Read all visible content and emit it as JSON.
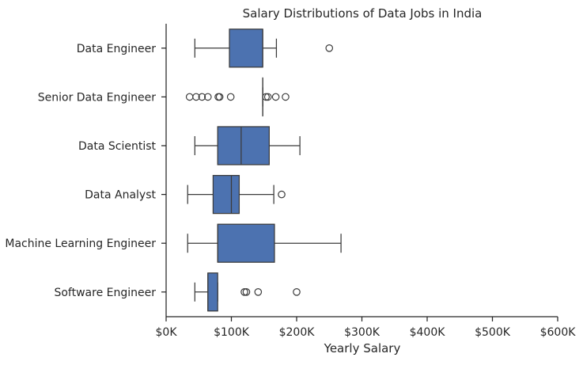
{
  "chart_data": {
    "type": "box",
    "orientation": "horizontal",
    "title": "Salary Distributions of Data Jobs in India",
    "xlabel": "Yearly Salary",
    "ylabel": "",
    "xlim": [
      0,
      600000
    ],
    "x_ticks": [
      0,
      100000,
      200000,
      300000,
      400000,
      500000,
      600000
    ],
    "x_tick_labels": [
      "$0K",
      "$100K",
      "$200K",
      "$300K",
      "$400K",
      "$500K",
      "$600K"
    ],
    "grid": false,
    "legend": "none",
    "box_color": "#4c72b0",
    "line_color": "#3b3b3b",
    "categories": [
      "Data Engineer",
      "Senior Data Engineer",
      "Data Scientist",
      "Data Analyst",
      "Machine Learning Engineer",
      "Software Engineer"
    ],
    "boxes": [
      {
        "label": "Data Engineer",
        "whisker_low": 44000,
        "q1": 97000,
        "median": 148000,
        "q3": 148000,
        "whisker_high": 169000,
        "outliers": [
          250000
        ]
      },
      {
        "label": "Senior Data Engineer",
        "whisker_low": 148000,
        "q1": 148000,
        "median": 148000,
        "q3": 148000,
        "whisker_high": 148000,
        "outliers": [
          36000,
          46000,
          55000,
          64000,
          80000,
          82000,
          99000,
          153000,
          156000,
          168000,
          183000
        ]
      },
      {
        "label": "Data Scientist",
        "whisker_low": 44000,
        "q1": 79000,
        "median": 115000,
        "q3": 158000,
        "whisker_high": 205000,
        "outliers": []
      },
      {
        "label": "Data Analyst",
        "whisker_low": 33000,
        "q1": 72000,
        "median": 100000,
        "q3": 112000,
        "whisker_high": 165000,
        "outliers": [
          177000
        ]
      },
      {
        "label": "Machine Learning Engineer",
        "whisker_low": 33000,
        "q1": 79000,
        "median": 79000,
        "q3": 166000,
        "whisker_high": 268000,
        "outliers": []
      },
      {
        "label": "Software Engineer",
        "whisker_low": 44000,
        "q1": 64000,
        "median": 64000,
        "q3": 79000,
        "whisker_high": 79000,
        "outliers": [
          120000,
          123000,
          141000,
          200000
        ]
      }
    ]
  }
}
